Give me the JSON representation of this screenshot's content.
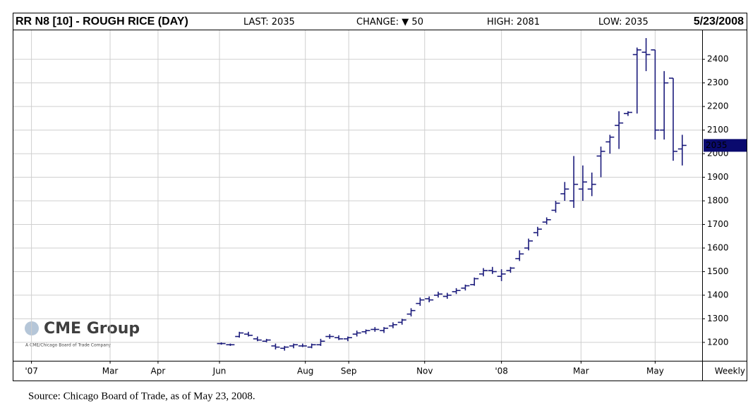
{
  "chart_data": {
    "type": "ohlc",
    "title": "RR N8 [10] - ROUGH RICE (DAY)",
    "stats": [
      {
        "label": "LAST:",
        "value": 2035
      },
      {
        "label": "CHANGE:",
        "symbol": "▼",
        "value": 50
      },
      {
        "label": "HIGH:",
        "value": 2081
      },
      {
        "label": "LOW:",
        "value": 2035
      }
    ],
    "date": "5/23/2008",
    "interval": "Weekly",
    "watermark": {
      "logo": "CME Group",
      "tagline": "A CME/Chicago Board of Trade Company"
    },
    "source": "Source: Chicago Board of Trade, as of May 23, 2008.",
    "color": "#1c1c7c",
    "grid": true,
    "x": [
      21,
      22,
      23,
      24,
      25,
      26,
      27,
      28,
      29,
      30,
      31,
      32,
      33,
      34,
      35,
      36,
      37,
      38,
      39,
      40,
      41,
      42,
      43,
      44,
      45,
      46,
      47,
      48,
      49,
      50,
      51,
      52,
      53,
      54,
      55,
      56,
      57,
      58,
      59,
      60,
      61,
      62,
      63,
      64,
      65,
      66,
      67,
      68,
      69,
      70,
      71,
      72
    ],
    "open": [
      1195,
      1190,
      1225,
      1235,
      1215,
      1205,
      1185,
      1175,
      1185,
      1185,
      1180,
      1190,
      1225,
      1220,
      1215,
      1235,
      1245,
      1255,
      1250,
      1270,
      1285,
      1320,
      1365,
      1385,
      1400,
      1395,
      1415,
      1430,
      1445,
      1490,
      1505,
      1480,
      1505,
      1555,
      1600,
      1665,
      1710,
      1760,
      1830,
      1800,
      1850,
      1850,
      1990,
      2050,
      2120,
      2170,
      2420,
      2430,
      2440,
      2100,
      2320,
      2020
    ],
    "high": [
      1200,
      1195,
      1245,
      1245,
      1225,
      1215,
      1195,
      1185,
      1195,
      1195,
      1195,
      1215,
      1235,
      1230,
      1225,
      1250,
      1255,
      1265,
      1265,
      1285,
      1300,
      1345,
      1390,
      1395,
      1415,
      1410,
      1430,
      1445,
      1475,
      1515,
      1520,
      1510,
      1520,
      1590,
      1640,
      1690,
      1730,
      1800,
      1880,
      1990,
      1950,
      1920,
      2030,
      2080,
      2180,
      2180,
      2450,
      2490,
      2440,
      2350,
      2320,
      2080
    ],
    "low": [
      1190,
      1185,
      1220,
      1225,
      1205,
      1200,
      1170,
      1165,
      1175,
      1180,
      1175,
      1185,
      1215,
      1210,
      1205,
      1225,
      1235,
      1245,
      1240,
      1260,
      1275,
      1310,
      1355,
      1370,
      1390,
      1385,
      1405,
      1420,
      1440,
      1480,
      1490,
      1460,
      1495,
      1545,
      1590,
      1650,
      1700,
      1750,
      1800,
      1770,
      1800,
      1820,
      1900,
      2000,
      2020,
      2160,
      2170,
      2350,
      2060,
      2060,
      1970,
      1950
    ],
    "close": [
      1195,
      1190,
      1240,
      1230,
      1210,
      1210,
      1180,
      1180,
      1190,
      1185,
      1190,
      1205,
      1225,
      1215,
      1220,
      1240,
      1250,
      1255,
      1260,
      1275,
      1295,
      1335,
      1380,
      1380,
      1405,
      1400,
      1420,
      1440,
      1470,
      1505,
      1500,
      1490,
      1515,
      1575,
      1630,
      1680,
      1720,
      1790,
      1850,
      1870,
      1880,
      1870,
      2010,
      2070,
      2130,
      2175,
      2440,
      2420,
      2100,
      2300,
      2010,
      2035
    ],
    "xlim": [
      -2,
      74.2
    ],
    "xticks": [
      {
        "value": 0,
        "label": "'07"
      },
      {
        "value": 8.7,
        "label": "Mar"
      },
      {
        "value": 14,
        "label": "Apr"
      },
      {
        "value": 20.8,
        "label": "Jun"
      },
      {
        "value": 30.3,
        "label": "Aug"
      },
      {
        "value": 35.1,
        "label": "Sep"
      },
      {
        "value": 43.5,
        "label": "Nov"
      },
      {
        "value": 52,
        "label": "'08"
      },
      {
        "value": 60.8,
        "label": "Mar"
      },
      {
        "value": 69,
        "label": "May"
      }
    ],
    "ylim": [
      1122,
      2523
    ],
    "yticks": [
      1200,
      1300,
      1400,
      1500,
      1600,
      1700,
      1800,
      1900,
      2000,
      2100,
      2200,
      2300,
      2400
    ]
  }
}
